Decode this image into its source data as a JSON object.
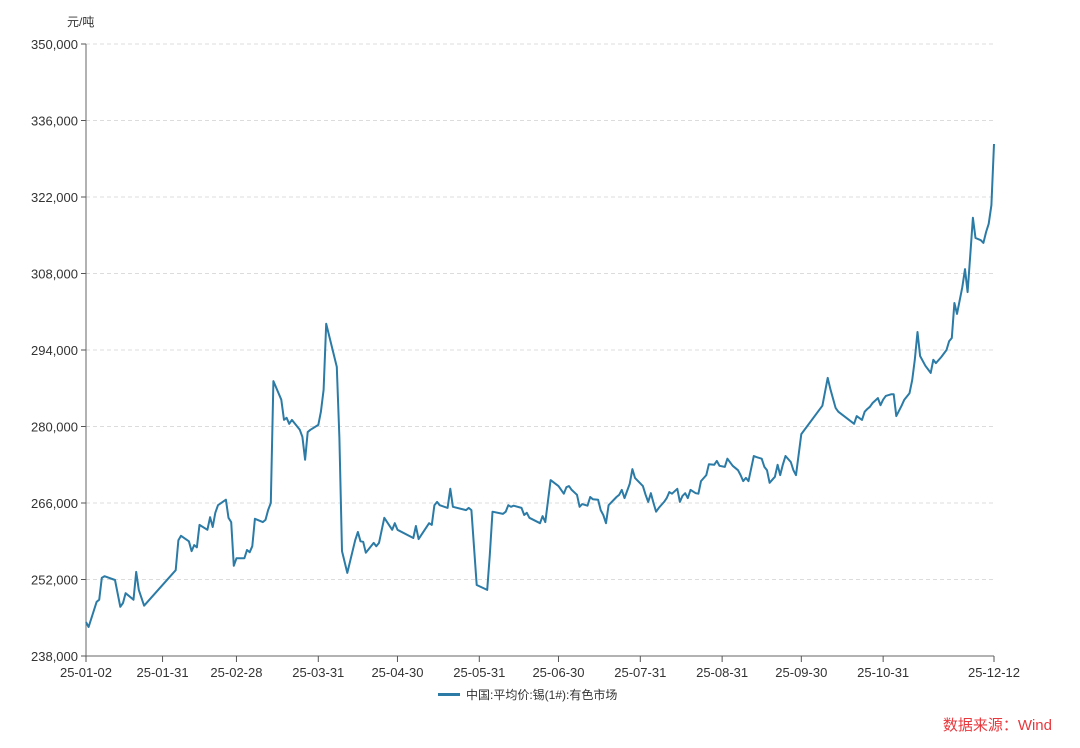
{
  "chart_data": {
    "type": "line",
    "title": "",
    "ylabel": "元/吨",
    "xlabel": "",
    "ylim": [
      238000,
      350000
    ],
    "yticks": [
      "238,000",
      "252,000",
      "266,000",
      "280,000",
      "294,000",
      "308,000",
      "322,000",
      "336,000",
      "350,000"
    ],
    "ytick_values": [
      238000,
      252000,
      266000,
      280000,
      294000,
      308000,
      322000,
      336000,
      350000
    ],
    "xlim": [
      "2025-01-02",
      "2025-12-12"
    ],
    "xticks": [
      "25-01-02",
      "25-01-31",
      "25-02-28",
      "25-03-31",
      "25-04-30",
      "25-05-31",
      "25-06-30",
      "25-07-31",
      "25-08-31",
      "25-09-30",
      "25-10-31",
      "25-12-12"
    ],
    "xtick_dates": [
      "2025-01-02",
      "2025-01-31",
      "2025-02-28",
      "2025-03-31",
      "2025-04-30",
      "2025-05-31",
      "2025-06-30",
      "2025-07-31",
      "2025-08-31",
      "2025-09-30",
      "2025-10-31",
      "2025-12-12"
    ],
    "grid": "horizontal-dashed",
    "legend_position": "bottom",
    "series": [
      {
        "name": "中国:平均价:锡(1#):有色市场",
        "color": "#2b7ba6",
        "points": [
          [
            "2025-01-02",
            244200
          ],
          [
            "2025-01-03",
            243300
          ],
          [
            "2025-01-06",
            247900
          ],
          [
            "2025-01-07",
            248300
          ],
          [
            "2025-01-08",
            252300
          ],
          [
            "2025-01-09",
            252600
          ],
          [
            "2025-01-13",
            251900
          ],
          [
            "2025-01-15",
            247000
          ],
          [
            "2025-01-16",
            247700
          ],
          [
            "2025-01-17",
            249500
          ],
          [
            "2025-01-20",
            248300
          ],
          [
            "2025-01-21",
            253400
          ],
          [
            "2025-01-22",
            250100
          ],
          [
            "2025-01-24",
            247200
          ],
          [
            "2025-02-05",
            253700
          ],
          [
            "2025-02-06",
            259200
          ],
          [
            "2025-02-07",
            260000
          ],
          [
            "2025-02-10",
            259000
          ],
          [
            "2025-02-11",
            257200
          ],
          [
            "2025-02-12",
            258300
          ],
          [
            "2025-02-13",
            257900
          ],
          [
            "2025-02-14",
            262000
          ],
          [
            "2025-02-17",
            261100
          ],
          [
            "2025-02-18",
            263400
          ],
          [
            "2025-02-19",
            261600
          ],
          [
            "2025-02-20",
            264200
          ],
          [
            "2025-02-21",
            265600
          ],
          [
            "2025-02-24",
            266600
          ],
          [
            "2025-02-25",
            263300
          ],
          [
            "2025-02-26",
            262500
          ],
          [
            "2025-02-27",
            254500
          ],
          [
            "2025-02-28",
            255900
          ],
          [
            "2025-03-03",
            255900
          ],
          [
            "2025-03-04",
            257400
          ],
          [
            "2025-03-05",
            257000
          ],
          [
            "2025-03-06",
            258100
          ],
          [
            "2025-03-07",
            263100
          ],
          [
            "2025-03-10",
            262500
          ],
          [
            "2025-03-11",
            262900
          ],
          [
            "2025-03-12",
            264700
          ],
          [
            "2025-03-13",
            266000
          ],
          [
            "2025-03-14",
            288300
          ],
          [
            "2025-03-17",
            284900
          ],
          [
            "2025-03-18",
            281200
          ],
          [
            "2025-03-19",
            281600
          ],
          [
            "2025-03-20",
            280500
          ],
          [
            "2025-03-21",
            281200
          ],
          [
            "2025-03-24",
            279400
          ],
          [
            "2025-03-25",
            278100
          ],
          [
            "2025-03-26",
            273900
          ],
          [
            "2025-03-27",
            279000
          ],
          [
            "2025-03-28",
            279400
          ],
          [
            "2025-03-31",
            280300
          ],
          [
            "2025-04-01",
            282700
          ],
          [
            "2025-04-02",
            286700
          ],
          [
            "2025-04-03",
            298800
          ],
          [
            "2025-04-07",
            290900
          ],
          [
            "2025-04-08",
            277900
          ],
          [
            "2025-04-09",
            257200
          ],
          [
            "2025-04-11",
            253200
          ],
          [
            "2025-04-14",
            259200
          ],
          [
            "2025-04-15",
            260700
          ],
          [
            "2025-04-16",
            259000
          ],
          [
            "2025-04-17",
            258900
          ],
          [
            "2025-04-18",
            256900
          ],
          [
            "2025-04-21",
            258700
          ],
          [
            "2025-04-22",
            258100
          ],
          [
            "2025-04-23",
            258700
          ],
          [
            "2025-04-25",
            263300
          ],
          [
            "2025-04-28",
            261100
          ],
          [
            "2025-04-29",
            262300
          ],
          [
            "2025-04-30",
            261100
          ],
          [
            "2025-05-06",
            259600
          ],
          [
            "2025-05-07",
            261800
          ],
          [
            "2025-05-08",
            259400
          ],
          [
            "2025-05-12",
            262300
          ],
          [
            "2025-05-13",
            262000
          ],
          [
            "2025-05-14",
            265600
          ],
          [
            "2025-05-15",
            266200
          ],
          [
            "2025-05-16",
            265600
          ],
          [
            "2025-05-19",
            265100
          ],
          [
            "2025-05-20",
            268600
          ],
          [
            "2025-05-21",
            265300
          ],
          [
            "2025-05-26",
            264700
          ],
          [
            "2025-05-27",
            265100
          ],
          [
            "2025-05-28",
            264700
          ],
          [
            "2025-05-30",
            251000
          ],
          [
            "2025-06-03",
            250100
          ],
          [
            "2025-06-04",
            256500
          ],
          [
            "2025-06-05",
            264400
          ],
          [
            "2025-06-09",
            264000
          ],
          [
            "2025-06-10",
            264400
          ],
          [
            "2025-06-11",
            265600
          ],
          [
            "2025-06-12",
            265300
          ],
          [
            "2025-06-13",
            265500
          ],
          [
            "2025-06-16",
            265100
          ],
          [
            "2025-06-17",
            263800
          ],
          [
            "2025-06-18",
            264200
          ],
          [
            "2025-06-19",
            263300
          ],
          [
            "2025-06-23",
            262300
          ],
          [
            "2025-06-24",
            263600
          ],
          [
            "2025-06-25",
            262500
          ],
          [
            "2025-06-27",
            270200
          ],
          [
            "2025-06-30",
            269100
          ],
          [
            "2025-07-02",
            267700
          ],
          [
            "2025-07-03",
            268900
          ],
          [
            "2025-07-04",
            269100
          ],
          [
            "2025-07-05",
            268400
          ],
          [
            "2025-07-07",
            267500
          ],
          [
            "2025-07-08",
            265300
          ],
          [
            "2025-07-09",
            265800
          ],
          [
            "2025-07-11",
            265500
          ],
          [
            "2025-07-12",
            267100
          ],
          [
            "2025-07-13",
            266700
          ],
          [
            "2025-07-15",
            266600
          ],
          [
            "2025-07-16",
            264700
          ],
          [
            "2025-07-17",
            263800
          ],
          [
            "2025-07-18",
            262300
          ],
          [
            "2025-07-19",
            265600
          ],
          [
            "2025-07-22",
            267100
          ],
          [
            "2025-07-23",
            267500
          ],
          [
            "2025-07-24",
            268400
          ],
          [
            "2025-07-25",
            266900
          ],
          [
            "2025-07-27",
            269500
          ],
          [
            "2025-07-28",
            272200
          ],
          [
            "2025-07-29",
            270600
          ],
          [
            "2025-08-01",
            269100
          ],
          [
            "2025-08-02",
            267500
          ],
          [
            "2025-08-03",
            266200
          ],
          [
            "2025-08-04",
            267800
          ],
          [
            "2025-08-05",
            266000
          ],
          [
            "2025-08-06",
            264400
          ],
          [
            "2025-08-07",
            265100
          ],
          [
            "2025-08-09",
            266200
          ],
          [
            "2025-08-10",
            266900
          ],
          [
            "2025-08-11",
            268000
          ],
          [
            "2025-08-12",
            267700
          ],
          [
            "2025-08-14",
            268600
          ],
          [
            "2025-08-15",
            266200
          ],
          [
            "2025-08-16",
            267300
          ],
          [
            "2025-08-17",
            267800
          ],
          [
            "2025-08-18",
            266900
          ],
          [
            "2025-08-19",
            268400
          ],
          [
            "2025-08-21",
            267800
          ],
          [
            "2025-08-22",
            267700
          ],
          [
            "2025-08-23",
            270000
          ],
          [
            "2025-08-25",
            271100
          ],
          [
            "2025-08-26",
            273100
          ],
          [
            "2025-08-28",
            273000
          ],
          [
            "2025-08-29",
            273700
          ],
          [
            "2025-08-30",
            272800
          ],
          [
            "2025-09-01",
            272600
          ],
          [
            "2025-09-02",
            274100
          ],
          [
            "2025-09-04",
            272800
          ],
          [
            "2025-09-06",
            272000
          ],
          [
            "2025-09-07",
            271100
          ],
          [
            "2025-09-08",
            270000
          ],
          [
            "2025-09-09",
            270600
          ],
          [
            "2025-09-10",
            270000
          ],
          [
            "2025-09-12",
            274600
          ],
          [
            "2025-09-13",
            274400
          ],
          [
            "2025-09-15",
            274100
          ],
          [
            "2025-09-16",
            272600
          ],
          [
            "2025-09-17",
            272000
          ],
          [
            "2025-09-18",
            269700
          ],
          [
            "2025-09-20",
            270800
          ],
          [
            "2025-09-21",
            273000
          ],
          [
            "2025-09-22",
            271100
          ],
          [
            "2025-09-23",
            273000
          ],
          [
            "2025-09-24",
            274600
          ],
          [
            "2025-09-26",
            273500
          ],
          [
            "2025-09-27",
            272000
          ],
          [
            "2025-09-28",
            271100
          ],
          [
            "2025-09-30",
            278600
          ],
          [
            "2025-10-08",
            283800
          ],
          [
            "2025-10-10",
            288900
          ],
          [
            "2025-10-11",
            286900
          ],
          [
            "2025-10-13",
            283400
          ],
          [
            "2025-10-14",
            282700
          ],
          [
            "2025-10-20",
            280500
          ],
          [
            "2025-10-21",
            281900
          ],
          [
            "2025-10-23",
            281200
          ],
          [
            "2025-10-24",
            282700
          ],
          [
            "2025-10-25",
            283200
          ],
          [
            "2025-10-26",
            283600
          ],
          [
            "2025-10-27",
            284300
          ],
          [
            "2025-10-29",
            285200
          ],
          [
            "2025-10-30",
            283900
          ],
          [
            "2025-10-31",
            284900
          ],
          [
            "2025-11-01",
            285600
          ],
          [
            "2025-11-03",
            285900
          ],
          [
            "2025-11-04",
            285900
          ],
          [
            "2025-11-05",
            281900
          ],
          [
            "2025-11-07",
            283800
          ],
          [
            "2025-11-08",
            284900
          ],
          [
            "2025-11-10",
            286100
          ],
          [
            "2025-11-11",
            288500
          ],
          [
            "2025-11-12",
            292200
          ],
          [
            "2025-11-13",
            297300
          ],
          [
            "2025-11-14",
            292900
          ],
          [
            "2025-11-16",
            291100
          ],
          [
            "2025-11-18",
            289800
          ],
          [
            "2025-11-19",
            292200
          ],
          [
            "2025-11-20",
            291600
          ],
          [
            "2025-11-22",
            292700
          ],
          [
            "2025-11-24",
            294000
          ],
          [
            "2025-11-25",
            295600
          ],
          [
            "2025-11-26",
            296200
          ],
          [
            "2025-11-27",
            302600
          ],
          [
            "2025-11-28",
            300600
          ],
          [
            "2025-11-30",
            305500
          ],
          [
            "2025-12-01",
            308800
          ],
          [
            "2025-12-02",
            304600
          ],
          [
            "2025-12-03",
            311200
          ],
          [
            "2025-12-04",
            318200
          ],
          [
            "2025-12-05",
            314500
          ],
          [
            "2025-12-07",
            314100
          ],
          [
            "2025-12-08",
            313600
          ],
          [
            "2025-12-09",
            315600
          ],
          [
            "2025-12-10",
            317100
          ],
          [
            "2025-12-11",
            320500
          ],
          [
            "2025-12-12",
            331700
          ]
        ]
      }
    ]
  },
  "source": "数据来源：Wind"
}
